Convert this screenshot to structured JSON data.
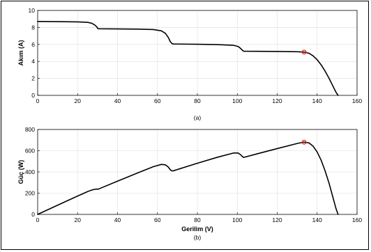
{
  "chart_data": [
    {
      "type": "line",
      "panel_label": "(a)",
      "xlabel": "",
      "ylabel": "Akım (A)",
      "xlim": [
        0,
        160
      ],
      "ylim": [
        0,
        10
      ],
      "x_ticks": [
        "0",
        "20",
        "40",
        "60",
        "80",
        "100",
        "120",
        "140",
        "160"
      ],
      "y_ticks": [
        "0",
        "2",
        "4",
        "6",
        "8",
        "10"
      ],
      "grid": true,
      "line_color": "#000000",
      "marker_color": "#e0261c",
      "series": [
        {
          "x": [
            0,
            10,
            20,
            25,
            27,
            28.5,
            29.5,
            30.2,
            31,
            40,
            50,
            58,
            62,
            64,
            65.5,
            66.5,
            67.3,
            68,
            80,
            90,
            98,
            100.5,
            101.8,
            102.6,
            103.2,
            110,
            120,
            130,
            133.5,
            136,
            138,
            140,
            142,
            144,
            146,
            148,
            149.5,
            150.5
          ],
          "y": [
            8.7,
            8.68,
            8.65,
            8.6,
            8.5,
            8.3,
            8.1,
            7.85,
            7.84,
            7.82,
            7.8,
            7.75,
            7.6,
            7.3,
            6.8,
            6.3,
            6.1,
            6.05,
            6.02,
            5.98,
            5.9,
            5.75,
            5.5,
            5.3,
            5.2,
            5.19,
            5.17,
            5.14,
            5.1,
            4.95,
            4.65,
            4.2,
            3.6,
            2.85,
            2.0,
            1.05,
            0.35,
            0.0
          ]
        }
      ],
      "marker": {
        "x": 133.5,
        "y": 5.1
      }
    },
    {
      "type": "line",
      "panel_label": "(b)",
      "xlabel": "Gerilim (V)",
      "ylabel": "Güç (W)",
      "xlim": [
        0,
        160
      ],
      "ylim": [
        0,
        800
      ],
      "x_ticks": [
        "0",
        "20",
        "40",
        "60",
        "80",
        "100",
        "120",
        "140",
        "160"
      ],
      "y_ticks": [
        "0",
        "200",
        "400",
        "600",
        "800"
      ],
      "grid": true,
      "line_color": "#000000",
      "marker_color": "#e0261c",
      "series": [
        {
          "x": [
            0,
            10,
            20,
            25,
            27,
            28.5,
            29.5,
            30.2,
            31,
            40,
            50,
            58,
            62,
            64,
            65.5,
            66.5,
            67.3,
            68,
            80,
            90,
            98,
            100.5,
            101.8,
            102.6,
            103.2,
            110,
            120,
            130,
            133.5,
            136,
            138,
            140,
            142,
            144,
            146,
            148,
            149.5,
            150.5
          ],
          "y": [
            0,
            87,
            173,
            215,
            229,
            236,
            239,
            237,
            243,
            313,
            390,
            450,
            471,
            467,
            445,
            419,
            410,
            411,
            482,
            538,
            578,
            578,
            560,
            544,
            537,
            571,
            620,
            668,
            681,
            673,
            642,
            588,
            511,
            410,
            292,
            155,
            52,
            0
          ]
        }
      ],
      "marker": {
        "x": 133.5,
        "y": 681
      }
    }
  ]
}
